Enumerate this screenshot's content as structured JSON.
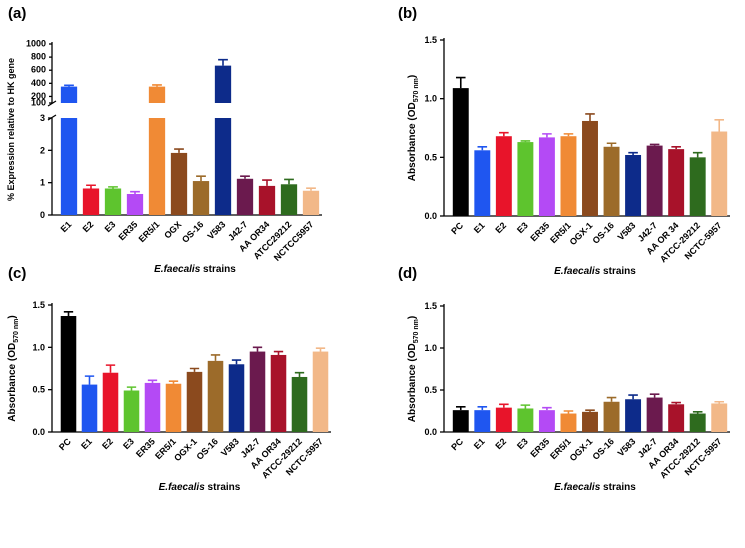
{
  "chart_data": [
    {
      "id": "a",
      "type": "bar",
      "panel_label": "(a)",
      "ylabel": "% Expression relative to HK gene",
      "xlabel_italic": "E.faecalis",
      "xlabel_rest": " strains",
      "axis_break": true,
      "ylim_lower": [
        0,
        3
      ],
      "ylim_upper": [
        100,
        1000
      ],
      "yticks_lower": [
        "0",
        "1",
        "2",
        "3"
      ],
      "yticks_upper": [
        "100",
        "200",
        "400",
        "600",
        "800",
        "1000"
      ],
      "categories": [
        "E1",
        "E2",
        "E3",
        "ER35",
        "ER5/1",
        "OGX",
        "OS-16",
        "V583",
        "J42-7",
        "AA OR34",
        "ATCC29212",
        "NCTCC5957"
      ],
      "values": [
        350,
        0.82,
        0.82,
        0.65,
        350,
        1.92,
        1.05,
        670,
        1.12,
        0.9,
        0.95,
        0.75
      ],
      "errors": [
        20,
        0.1,
        0.05,
        0.07,
        25,
        0.12,
        0.15,
        90,
        0.08,
        0.18,
        0.15,
        0.08
      ],
      "colors": [
        "#1f56f0",
        "#e8142a",
        "#5ec42e",
        "#b44af5",
        "#f08a35",
        "#8b4a1e",
        "#9c6b2a",
        "#0d2b8a",
        "#6b1a4e",
        "#a8122a",
        "#2e6b1e",
        "#f2b888"
      ]
    },
    {
      "id": "b",
      "type": "bar",
      "panel_label": "(b)",
      "ylabel_main": "Absorbance (OD",
      "ylabel_sub": "570 nm",
      "ylabel_end": ")",
      "xlabel_italic": "E.faecalis",
      "xlabel_rest": " strains",
      "ylim": [
        0,
        1.5
      ],
      "yticks": [
        "0.0",
        "0.5",
        "1.0",
        "1.5"
      ],
      "categories": [
        "PC",
        "E1",
        "E2",
        "E3",
        "ER35",
        "ER5/1",
        "OGX-1",
        "OS-16",
        "V583",
        "J42-7",
        "AA OR 34",
        "ATCC-29212",
        "NCTC-5957"
      ],
      "values": [
        1.09,
        0.56,
        0.68,
        0.63,
        0.67,
        0.68,
        0.81,
        0.59,
        0.52,
        0.6,
        0.57,
        0.5,
        0.72
      ],
      "errors": [
        0.09,
        0.03,
        0.03,
        0.01,
        0.03,
        0.02,
        0.06,
        0.03,
        0.02,
        0.01,
        0.02,
        0.04,
        0.1
      ],
      "colors": [
        "#000000",
        "#1f56f0",
        "#e8142a",
        "#5ec42e",
        "#b44af5",
        "#f08a35",
        "#8b4a1e",
        "#9c6b2a",
        "#0d2b8a",
        "#6b1a4e",
        "#a8122a",
        "#2e6b1e",
        "#f2b888"
      ]
    },
    {
      "id": "c",
      "type": "bar",
      "panel_label": "(c)",
      "ylabel_main": "Absorbance (OD",
      "ylabel_sub": "570 nm",
      "ylabel_end": ")",
      "xlabel_italic": "E.faecalis",
      "xlabel_rest": " strains",
      "ylim": [
        0,
        1.5
      ],
      "yticks": [
        "0.0",
        "0.5",
        "1.0",
        "1.5"
      ],
      "categories": [
        "PC",
        "E1",
        "E2",
        "E3",
        "ER35",
        "ER5/1",
        "OGX-1",
        "OS-16",
        "V583",
        "J42-7",
        "AA OR34",
        "ATCC-29212",
        "NCTC-5957"
      ],
      "values": [
        1.37,
        0.56,
        0.7,
        0.49,
        0.58,
        0.57,
        0.71,
        0.84,
        0.8,
        0.95,
        0.91,
        0.65,
        0.95
      ],
      "errors": [
        0.05,
        0.1,
        0.09,
        0.04,
        0.03,
        0.03,
        0.04,
        0.07,
        0.05,
        0.05,
        0.04,
        0.05,
        0.04
      ],
      "colors": [
        "#000000",
        "#1f56f0",
        "#e8142a",
        "#5ec42e",
        "#b44af5",
        "#f08a35",
        "#8b4a1e",
        "#9c6b2a",
        "#0d2b8a",
        "#6b1a4e",
        "#a8122a",
        "#2e6b1e",
        "#f2b888"
      ]
    },
    {
      "id": "d",
      "type": "bar",
      "panel_label": "(d)",
      "ylabel_main": "Absorbance (OD",
      "ylabel_sub": "570 nm",
      "ylabel_end": ")",
      "xlabel_italic": "E.faecalis",
      "xlabel_rest": " strains",
      "ylim": [
        0,
        1.5
      ],
      "yticks": [
        "0.0",
        "0.5",
        "1.0",
        "1.5"
      ],
      "categories": [
        "PC",
        "E1",
        "E2",
        "E3",
        "ER35",
        "ER5/1",
        "OGX-1",
        "OS-16",
        "V583",
        "J42-7",
        "AA OR34",
        "ATCC-29212",
        "NCTC-5957"
      ],
      "values": [
        0.26,
        0.26,
        0.29,
        0.28,
        0.26,
        0.22,
        0.24,
        0.36,
        0.39,
        0.41,
        0.33,
        0.22,
        0.34
      ],
      "errors": [
        0.04,
        0.04,
        0.04,
        0.04,
        0.03,
        0.03,
        0.02,
        0.05,
        0.05,
        0.04,
        0.02,
        0.02,
        0.02
      ],
      "colors": [
        "#000000",
        "#1f56f0",
        "#e8142a",
        "#5ec42e",
        "#b44af5",
        "#f08a35",
        "#8b4a1e",
        "#9c6b2a",
        "#0d2b8a",
        "#6b1a4e",
        "#a8122a",
        "#2e6b1e",
        "#f2b888"
      ]
    }
  ]
}
